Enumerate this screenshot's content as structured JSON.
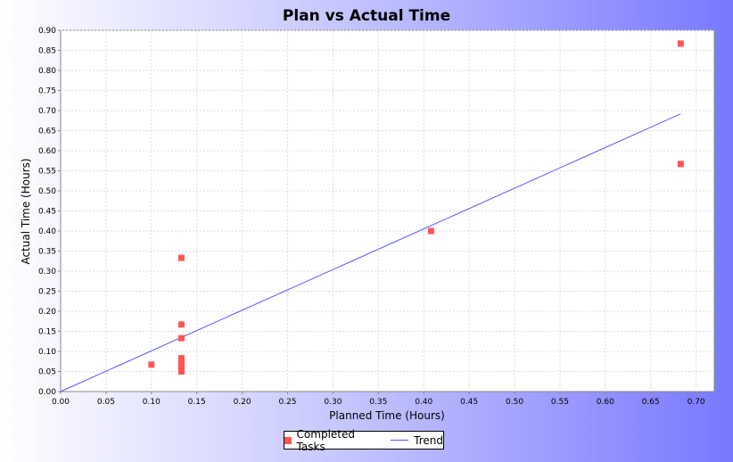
{
  "chart_data": {
    "type": "scatter",
    "title": "Plan vs Actual Time",
    "xlabel": "Planned Time (Hours)",
    "ylabel": "Actual Time (Hours)",
    "xlim": [
      0,
      0.72
    ],
    "ylim": [
      0,
      0.9
    ],
    "x_ticks": [
      "0.00",
      "0.05",
      "0.10",
      "0.15",
      "0.20",
      "0.25",
      "0.30",
      "0.35",
      "0.40",
      "0.45",
      "0.50",
      "0.55",
      "0.60",
      "0.65",
      "0.70"
    ],
    "y_ticks": [
      "0.00",
      "0.05",
      "0.10",
      "0.15",
      "0.20",
      "0.25",
      "0.30",
      "0.35",
      "0.40",
      "0.45",
      "0.50",
      "0.55",
      "0.60",
      "0.65",
      "0.70",
      "0.75",
      "0.80",
      "0.85",
      "0.90"
    ],
    "grid": true,
    "legend_position": "bottom",
    "series": [
      {
        "name": "Completed Tasks",
        "type": "scatter",
        "color": "#ff5555",
        "points": [
          {
            "x": 0.1,
            "y": 0.067
          },
          {
            "x": 0.133,
            "y": 0.333
          },
          {
            "x": 0.133,
            "y": 0.167
          },
          {
            "x": 0.133,
            "y": 0.133
          },
          {
            "x": 0.133,
            "y": 0.083
          },
          {
            "x": 0.133,
            "y": 0.075
          },
          {
            "x": 0.133,
            "y": 0.067
          },
          {
            "x": 0.133,
            "y": 0.058
          },
          {
            "x": 0.133,
            "y": 0.05
          },
          {
            "x": 0.408,
            "y": 0.4
          },
          {
            "x": 0.683,
            "y": 0.867
          },
          {
            "x": 0.683,
            "y": 0.567
          }
        ]
      },
      {
        "name": "Trend",
        "type": "line",
        "color": "#5555ff",
        "points": [
          {
            "x": 0.0,
            "y": 0.0
          },
          {
            "x": 0.683,
            "y": 0.692
          }
        ]
      }
    ]
  }
}
